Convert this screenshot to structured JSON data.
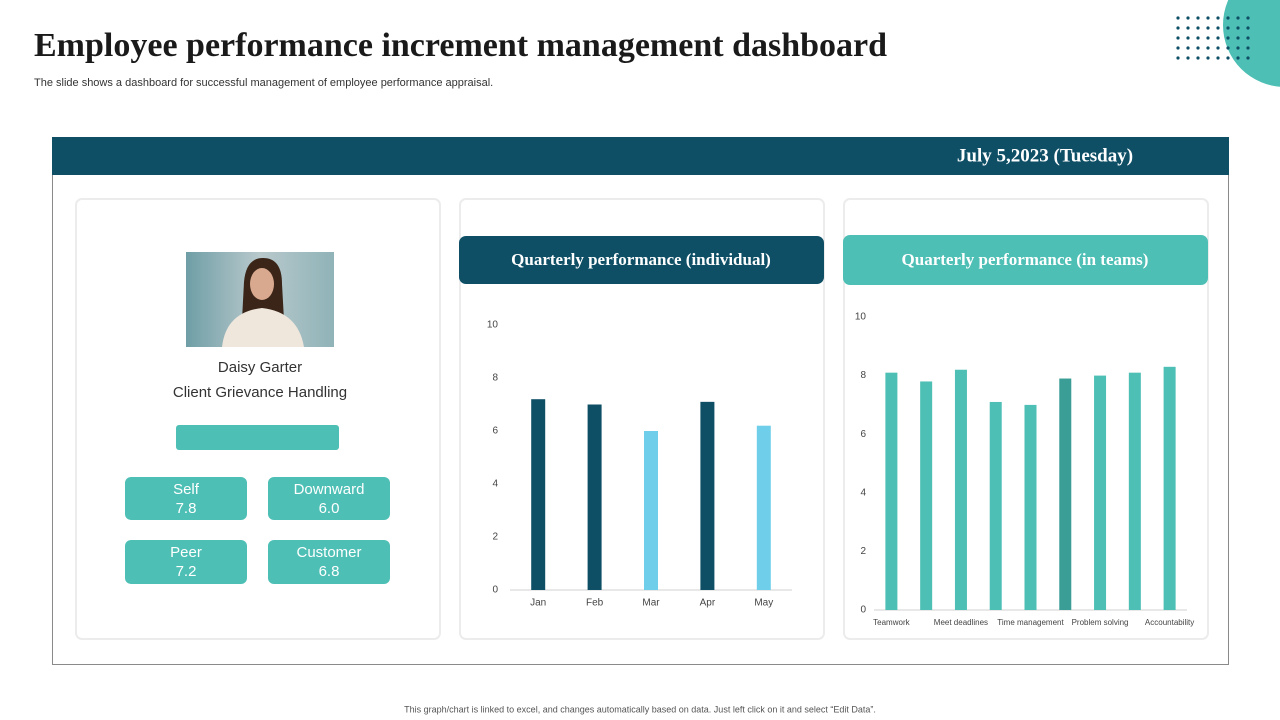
{
  "title": "Employee performance increment management dashboard",
  "subtitle": "The slide shows a dashboard for successful management of employee performance appraisal.",
  "date": "July 5,2023 (Tuesday)",
  "profile": {
    "name": "Daisy Garter",
    "role": "Client Grievance Handling"
  },
  "ratings": [
    {
      "label": "Self",
      "value": "7.8"
    },
    {
      "label": "Downward",
      "value": "6.0"
    },
    {
      "label": "Peer",
      "value": "7.2"
    },
    {
      "label": "Customer",
      "value": "6.8"
    }
  ],
  "footer": "This graph/chart is linked to excel, and changes automatically based on data. Just left click on it and select “Edit Data”.",
  "chart_data": [
    {
      "type": "bar",
      "title": "Quarterly performance (individual)",
      "categories": [
        "Jan",
        "Feb",
        "Mar",
        "Apr",
        "May"
      ],
      "values": [
        7.2,
        7.0,
        6.0,
        7.1,
        6.2
      ],
      "colors": [
        "#0e4f66",
        "#0e4f66",
        "#6fcfeb",
        "#0e4f66",
        "#6fcfeb"
      ],
      "ylim": [
        0,
        10
      ],
      "yticks": [
        0,
        2,
        4,
        6,
        8,
        10
      ]
    },
    {
      "type": "bar",
      "title": "Quarterly performance (in teams)",
      "categories": [
        "Teamwork",
        null,
        "Meet deadlines",
        null,
        "Time management",
        null,
        "Problem solving",
        null,
        "Accountability"
      ],
      "values": [
        8.1,
        7.8,
        8.2,
        7.1,
        7.0,
        7.9,
        8.0,
        8.1,
        8.3
      ],
      "colors": [
        "#4dbfb5",
        "#4dbfb5",
        "#4dbfb5",
        "#4dbfb5",
        "#4dbfb5",
        "#3a9e96",
        "#4dbfb5",
        "#4dbfb5",
        "#4dbfb5"
      ],
      "ylim": [
        0,
        10
      ],
      "yticks": [
        0,
        2,
        4,
        6,
        8,
        10
      ]
    }
  ]
}
